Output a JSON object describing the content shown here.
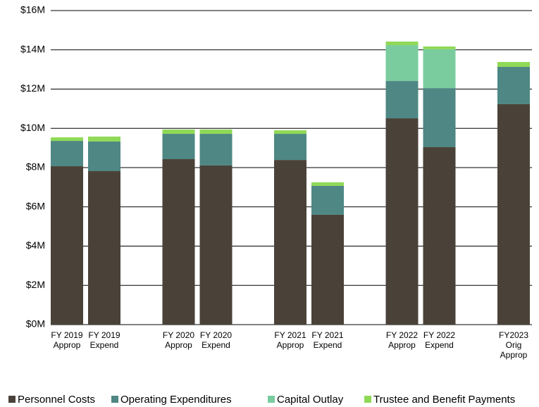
{
  "chart_data": {
    "type": "stacked_bar",
    "categories": [
      [
        "FY 2019",
        "Approp"
      ],
      [
        "FY 2019",
        "Expend"
      ],
      [
        "FY 2020",
        "Approp"
      ],
      [
        "FY 2020",
        "Expend"
      ],
      [
        "FY 2021",
        "Approp"
      ],
      [
        "FY 2021",
        "Expend"
      ],
      [
        "FY 2022",
        "Approp"
      ],
      [
        "FY 2022",
        "Expend"
      ],
      [
        "FY2023",
        "Orig",
        "Approp"
      ]
    ],
    "series": [
      {
        "name": "Personnel Costs",
        "color": "#4a4238",
        "values": [
          8.07,
          7.82,
          8.43,
          8.11,
          8.39,
          5.6,
          10.51,
          9.04,
          11.23
        ]
      },
      {
        "name": "Operating Expenditures",
        "color": "#4e8784",
        "values": [
          1.29,
          1.51,
          1.29,
          1.61,
          1.33,
          1.47,
          1.9,
          3.01,
          1.9
        ]
      },
      {
        "name": "Capital Outlay",
        "color": "#7acc9e",
        "values": [
          0,
          0,
          0,
          0,
          0,
          0,
          1.83,
          1.98,
          0
        ]
      },
      {
        "name": "Trustee and Benefit Payments",
        "color": "#8fd957",
        "values": [
          0.18,
          0.25,
          0.22,
          0.22,
          0.18,
          0.18,
          0.18,
          0.14,
          0.25
        ]
      }
    ],
    "ylim": [
      0,
      16
    ],
    "yticks": [
      {
        "value": 0,
        "label": "$0M"
      },
      {
        "value": 2,
        "label": "$2M"
      },
      {
        "value": 4,
        "label": "$4M"
      },
      {
        "value": 6,
        "label": "$6M"
      },
      {
        "value": 8,
        "label": "$8M"
      },
      {
        "value": 10,
        "label": "$10M"
      },
      {
        "value": 12,
        "label": "$12M"
      },
      {
        "value": 14,
        "label": "$14M"
      },
      {
        "value": 16,
        "label": "$16M"
      }
    ],
    "grid": true,
    "legend": "bottom"
  }
}
